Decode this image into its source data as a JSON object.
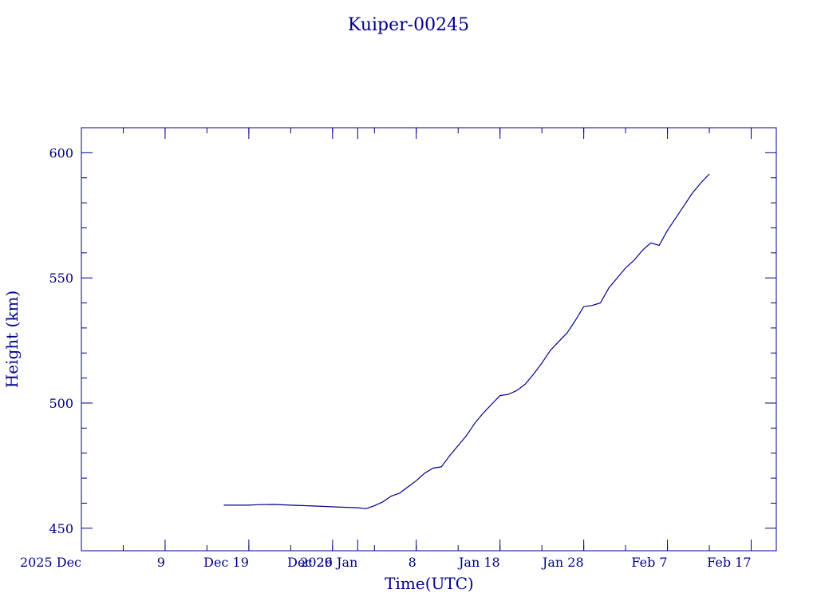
{
  "chart_data": {
    "type": "line",
    "title": "Kuiper-00245",
    "xlabel": "Time(UTC)",
    "ylabel": "Height (km)",
    "colors": {
      "ink": "#00008b"
    },
    "grid": false,
    "x_axis": {
      "type": "date",
      "range": [
        "2025-11-29",
        "2026-02-20"
      ],
      "major_ticks": [
        {
          "date": "2025-11-29",
          "label": "2025 Dec"
        },
        {
          "date": "2025-12-09",
          "label": "9"
        },
        {
          "date": "2025-12-19",
          "label": "Dec 19"
        },
        {
          "date": "2025-12-29",
          "label": "Dec 29"
        },
        {
          "date": "2026-01-01",
          "label": "2026 Jan"
        },
        {
          "date": "2026-01-08",
          "label": "8"
        },
        {
          "date": "2026-01-18",
          "label": "Jan 18"
        },
        {
          "date": "2026-01-28",
          "label": "Jan 28"
        },
        {
          "date": "2026-02-07",
          "label": "Feb  7"
        },
        {
          "date": "2026-02-17",
          "label": "Feb 17"
        }
      ]
    },
    "y_axis": {
      "range": [
        441,
        610
      ],
      "major_ticks": [
        450,
        500,
        550,
        600
      ],
      "minor_ticks": [
        460,
        470,
        480,
        490,
        510,
        520,
        530,
        540,
        560,
        570,
        580,
        590
      ]
    },
    "series": [
      {
        "points": [
          [
            "2025-12-16",
            459.2
          ],
          [
            "2025-12-19",
            459.2
          ],
          [
            "2025-12-20",
            459.4
          ],
          [
            "2025-12-22",
            459.5
          ],
          [
            "2025-12-24",
            459.2
          ],
          [
            "2025-12-26",
            459.0
          ],
          [
            "2025-12-28",
            458.7
          ],
          [
            "2025-12-30",
            458.4
          ],
          [
            "2026-01-01",
            458.2
          ],
          [
            "2026-01-02",
            457.8
          ],
          [
            "2026-01-03",
            459.0
          ],
          [
            "2026-01-04",
            460.5
          ],
          [
            "2026-01-05",
            462.8
          ],
          [
            "2026-01-06",
            464.0
          ],
          [
            "2026-01-07",
            466.5
          ],
          [
            "2026-01-08",
            469.0
          ],
          [
            "2026-01-09",
            472.0
          ],
          [
            "2026-01-10",
            474.0
          ],
          [
            "2026-01-11",
            474.5
          ],
          [
            "2026-01-12",
            479.0
          ],
          [
            "2026-01-13",
            483.0
          ],
          [
            "2026-01-14",
            487.0
          ],
          [
            "2026-01-15",
            492.0
          ],
          [
            "2026-01-16",
            496.0
          ],
          [
            "2026-01-17",
            499.5
          ],
          [
            "2026-01-18",
            503.0
          ],
          [
            "2026-01-19",
            503.5
          ],
          [
            "2026-01-20",
            505.0
          ],
          [
            "2026-01-21",
            507.5
          ],
          [
            "2026-01-22",
            511.5
          ],
          [
            "2026-01-23",
            516.0
          ],
          [
            "2026-01-24",
            521.0
          ],
          [
            "2026-01-25",
            524.5
          ],
          [
            "2026-01-26",
            528.0
          ],
          [
            "2026-01-27",
            533.0
          ],
          [
            "2026-01-28",
            538.5
          ],
          [
            "2026-01-29",
            539.0
          ],
          [
            "2026-01-30",
            540.0
          ],
          [
            "2026-01-31",
            546.0
          ],
          [
            "2026-02-01",
            550.0
          ],
          [
            "2026-02-02",
            554.0
          ],
          [
            "2026-02-03",
            557.0
          ],
          [
            "2026-02-04",
            561.0
          ],
          [
            "2026-02-05",
            564.0
          ],
          [
            "2026-02-06",
            563.0
          ],
          [
            "2026-02-07",
            569.0
          ],
          [
            "2026-02-08",
            574.0
          ],
          [
            "2026-02-09",
            579.0
          ],
          [
            "2026-02-10",
            584.0
          ],
          [
            "2026-02-11",
            588.0
          ],
          [
            "2026-02-12",
            591.5
          ]
        ]
      }
    ]
  }
}
